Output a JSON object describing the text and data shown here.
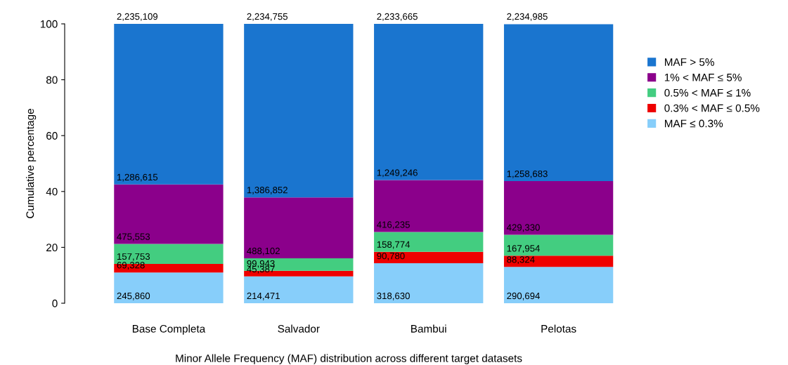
{
  "chart_data": {
    "type": "bar",
    "stacked": true,
    "xlabel": "Minor Allele Frequency (MAF) distribution across different target datasets",
    "ylabel": "Cumulative percentage",
    "categories": [
      "Base Completa",
      "Salvador",
      "Bambui",
      "Pelotas"
    ],
    "ylim": [
      0,
      100
    ],
    "yticks": [
      0,
      20,
      40,
      60,
      80,
      100
    ],
    "series": [
      {
        "name": "MAF ≤ 0.3%",
        "color": "#87cefa",
        "values": [
          11.0,
          9.6,
          14.3,
          13.0
        ]
      },
      {
        "name": "0.3% < MAF ≤ 0.5%",
        "color": "#ee0000",
        "values": [
          3.1,
          2.0,
          4.1,
          4.0
        ]
      },
      {
        "name": "0.5% < MAF ≤ 1%",
        "color": "#43cd80",
        "values": [
          7.1,
          4.5,
          7.1,
          7.5
        ]
      },
      {
        "name": "1% < MAF ≤ 5%",
        "color": "#8b008b",
        "values": [
          21.3,
          21.8,
          18.6,
          19.2
        ]
      },
      {
        "name": "MAF > 5%",
        "color": "#1a75cf",
        "values": [
          57.5,
          62.1,
          55.9,
          56.2
        ]
      }
    ],
    "annotations": [
      {
        "text": "245,860",
        "x": "Base Completa",
        "y": 0
      },
      {
        "text": "214,471",
        "x": "Salvador",
        "y": 0
      },
      {
        "text": "318,630",
        "x": "Bambui",
        "y": 0
      },
      {
        "text": "290,694",
        "x": "Pelotas",
        "y": 0
      },
      {
        "text": "69,328",
        "x": "Base Completa",
        "y": 11.0
      },
      {
        "text": "45,387",
        "x": "Salvador",
        "y": 9.6
      },
      {
        "text": "90,780",
        "x": "Bambui",
        "y": 14.3
      },
      {
        "text": "88,324",
        "x": "Pelotas",
        "y": 13.0
      },
      {
        "text": "157,753",
        "x": "Base Completa",
        "y": 14.1
      },
      {
        "text": "99,943",
        "x": "Salvador",
        "y": 11.6
      },
      {
        "text": "158,774",
        "x": "Bambui",
        "y": 18.4
      },
      {
        "text": "167,954",
        "x": "Pelotas",
        "y": 17.0
      },
      {
        "text": "475,553",
        "x": "Base Completa",
        "y": 21.2
      },
      {
        "text": "488,102",
        "x": "Salvador",
        "y": 16.1
      },
      {
        "text": "416,235",
        "x": "Bambui",
        "y": 25.5
      },
      {
        "text": "429,330",
        "x": "Pelotas",
        "y": 24.5
      },
      {
        "text": "1,286,615",
        "x": "Base Completa",
        "y": 42.5
      },
      {
        "text": "1,386,852",
        "x": "Salvador",
        "y": 37.9
      },
      {
        "text": "1,249,246",
        "x": "Bambui",
        "y": 44.1
      },
      {
        "text": "1,258,683",
        "x": "Pelotas",
        "y": 43.7
      },
      {
        "text": "2,235,109",
        "x": "Base Completa",
        "y": 100
      },
      {
        "text": "2,234,755",
        "x": "Salvador",
        "y": 100
      },
      {
        "text": "2,233,665",
        "x": "Bambui",
        "y": 100
      },
      {
        "text": "2,234,985",
        "x": "Pelotas",
        "y": 100
      }
    ],
    "legend": "right",
    "grid": false
  }
}
